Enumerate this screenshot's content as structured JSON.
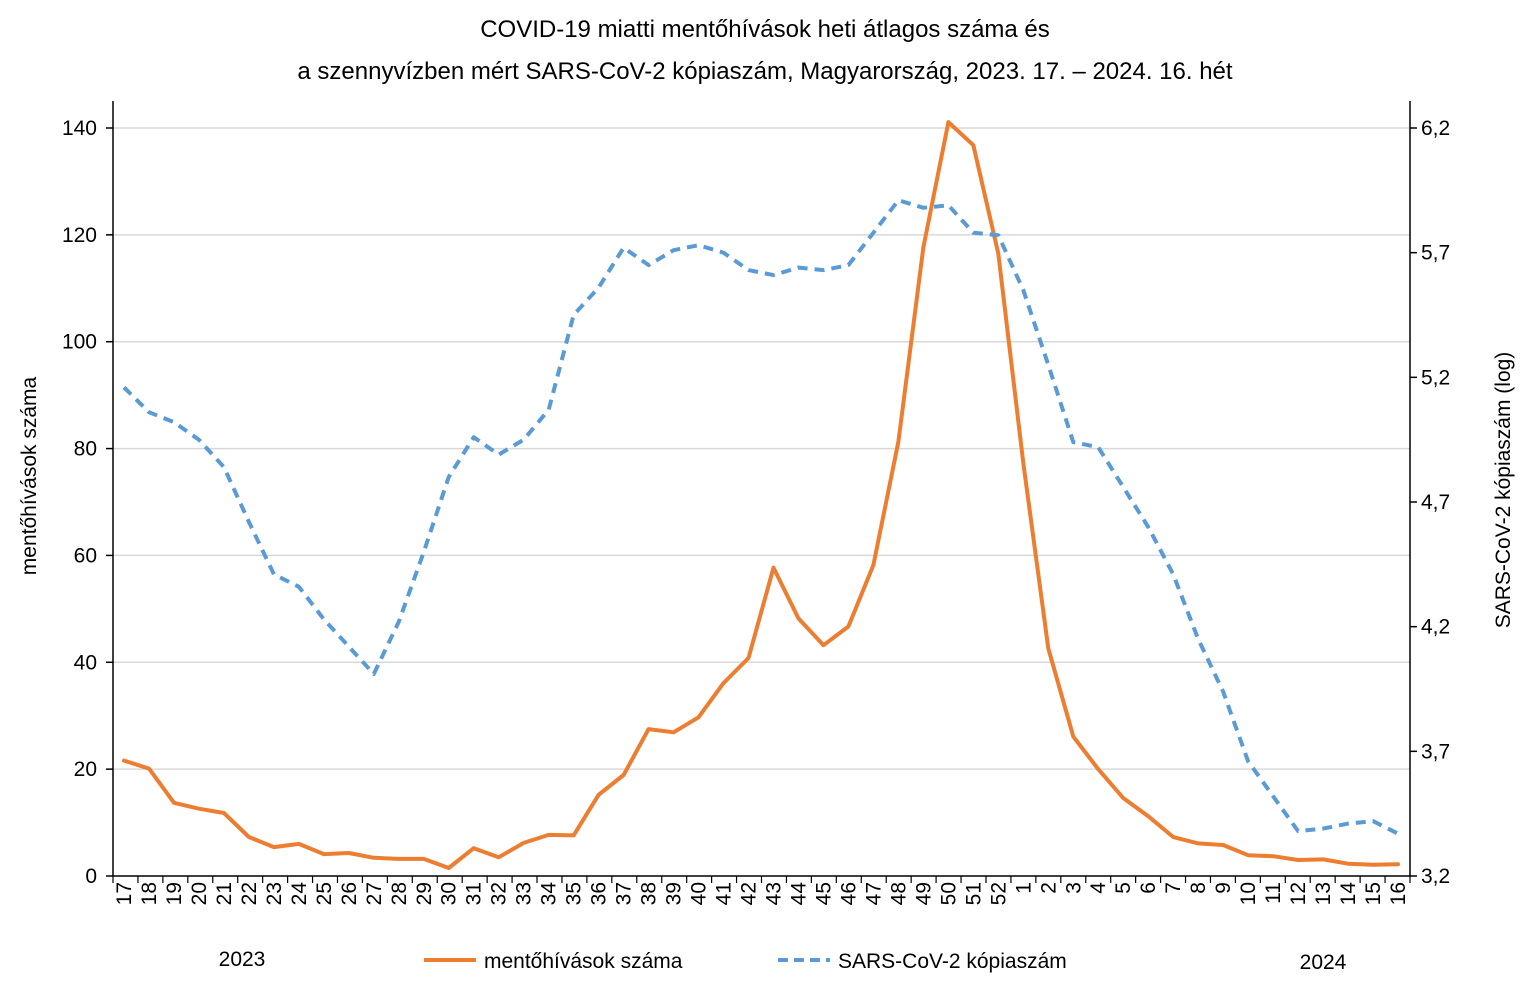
{
  "chart_data": {
    "type": "line",
    "title": [
      "COVID-19 miatti mentőhívások heti átlagos száma és",
      "a szennyvízben mért SARS-CoV-2 kópiaszám, Magyarország, 2023. 17. – 2024. 16. hét"
    ],
    "ylabel": "mentőhívások száma",
    "y2label": "SARS-CoV-2 kópiaszám (log)",
    "ylim": [
      0,
      140
    ],
    "y2lim": [
      3.2,
      6.2
    ],
    "y_ticks": [
      "0",
      "20",
      "40",
      "60",
      "80",
      "100",
      "120",
      "140"
    ],
    "y2_ticks": [
      "3,2",
      "3,7",
      "4,2",
      "4,7",
      "5,2",
      "5,7",
      "6,2"
    ],
    "grid": "horizontal",
    "legend_position": "bottom",
    "year_labels": [
      "2023",
      "2024"
    ],
    "categories": [
      "17",
      "18",
      "19",
      "20",
      "21",
      "22",
      "23",
      "24",
      "25",
      "26",
      "27",
      "28",
      "29",
      "30",
      "31",
      "32",
      "33",
      "34",
      "35",
      "36",
      "37",
      "38",
      "39",
      "40",
      "41",
      "42",
      "43",
      "44",
      "45",
      "46",
      "47",
      "48",
      "49",
      "50",
      "51",
      "52",
      "1",
      "2",
      "3",
      "4",
      "5",
      "6",
      "7",
      "8",
      "9",
      "10",
      "11",
      "12",
      "13",
      "14",
      "15",
      "16"
    ],
    "series": [
      {
        "name": "mentőhívások száma",
        "axis": "left",
        "color": "#ED7D31",
        "style": "solid",
        "values": [
          21.6,
          20.1,
          13.7,
          12.6,
          11.8,
          7.3,
          5.4,
          6.0,
          4.1,
          4.3,
          3.4,
          3.2,
          3.2,
          1.5,
          5.2,
          3.5,
          6.2,
          7.7,
          7.6,
          15.2,
          18.9,
          27.5,
          26.9,
          29.7,
          36.1,
          40.8,
          57.7,
          48.2,
          43.2,
          46.7,
          58.2,
          81.3,
          117.7,
          141.1,
          136.8,
          116.5,
          77.3,
          42.6,
          26.1,
          20.0,
          14.6,
          11.2,
          7.3,
          6.1,
          5.8,
          3.9,
          3.7,
          3.0,
          3.1,
          2.3,
          2.1,
          2.2
        ]
      },
      {
        "name": "SARS-CoV-2 kópiaszám",
        "axis": "right",
        "color": "#5B9BD5",
        "style": "dashed",
        "values": [
          5.16,
          5.06,
          5.02,
          4.95,
          4.84,
          4.62,
          4.41,
          4.36,
          4.23,
          4.12,
          4.01,
          4.22,
          4.5,
          4.8,
          4.96,
          4.89,
          4.95,
          5.07,
          5.45,
          5.56,
          5.72,
          5.65,
          5.71,
          5.73,
          5.7,
          5.63,
          5.61,
          5.64,
          5.63,
          5.65,
          5.78,
          5.91,
          5.88,
          5.89,
          5.78,
          5.77,
          5.55,
          5.25,
          4.94,
          4.92,
          4.76,
          4.6,
          4.41,
          4.15,
          3.94,
          3.66,
          3.52,
          3.38,
          3.39,
          3.41,
          3.42,
          3.37
        ]
      }
    ]
  }
}
